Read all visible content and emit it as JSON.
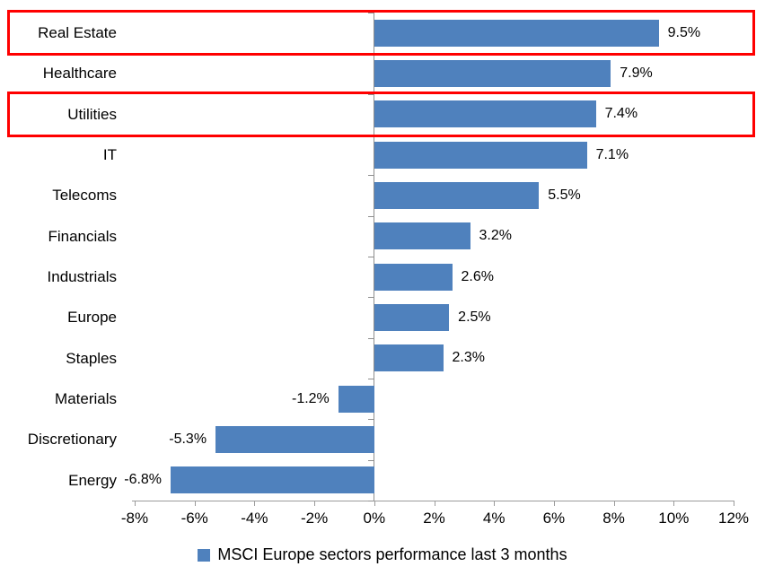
{
  "chart_data": {
    "type": "bar",
    "orientation": "horizontal",
    "title": "",
    "categories": [
      "Real Estate",
      "Healthcare",
      "Utilities",
      "IT",
      "Telecoms",
      "Financials",
      "Industrials",
      "Europe",
      "Staples",
      "Materials",
      "Discretionary",
      "Energy"
    ],
    "values": [
      9.5,
      7.9,
      7.4,
      7.1,
      5.5,
      3.2,
      2.6,
      2.5,
      2.3,
      -1.2,
      -5.3,
      -6.8
    ],
    "value_labels": [
      "9.5%",
      "7.9%",
      "7.4%",
      "7.1%",
      "5.5%",
      "3.2%",
      "2.6%",
      "2.5%",
      "2.3%",
      "-1.2%",
      "-5.3%",
      "-6.8%"
    ],
    "xlim": [
      -8,
      12
    ],
    "x_tick_values": [
      -8,
      -6,
      -4,
      -2,
      0,
      2,
      4,
      6,
      8,
      10,
      12
    ],
    "x_tick_labels": [
      "-8%",
      "-6%",
      "-4%",
      "-2%",
      "0%",
      "2%",
      "4%",
      "6%",
      "8%",
      "10%",
      "12%"
    ],
    "grid": false,
    "legend_position": "bottom",
    "legend": "MSCI Europe sectors performance last 3 months",
    "bar_color": "#4f81bd",
    "axis_color": "#9b9b9b",
    "text_color": "#000000",
    "highlight_color": "#ff0000",
    "highlighted_categories": [
      "Real Estate",
      "Utilities"
    ]
  }
}
